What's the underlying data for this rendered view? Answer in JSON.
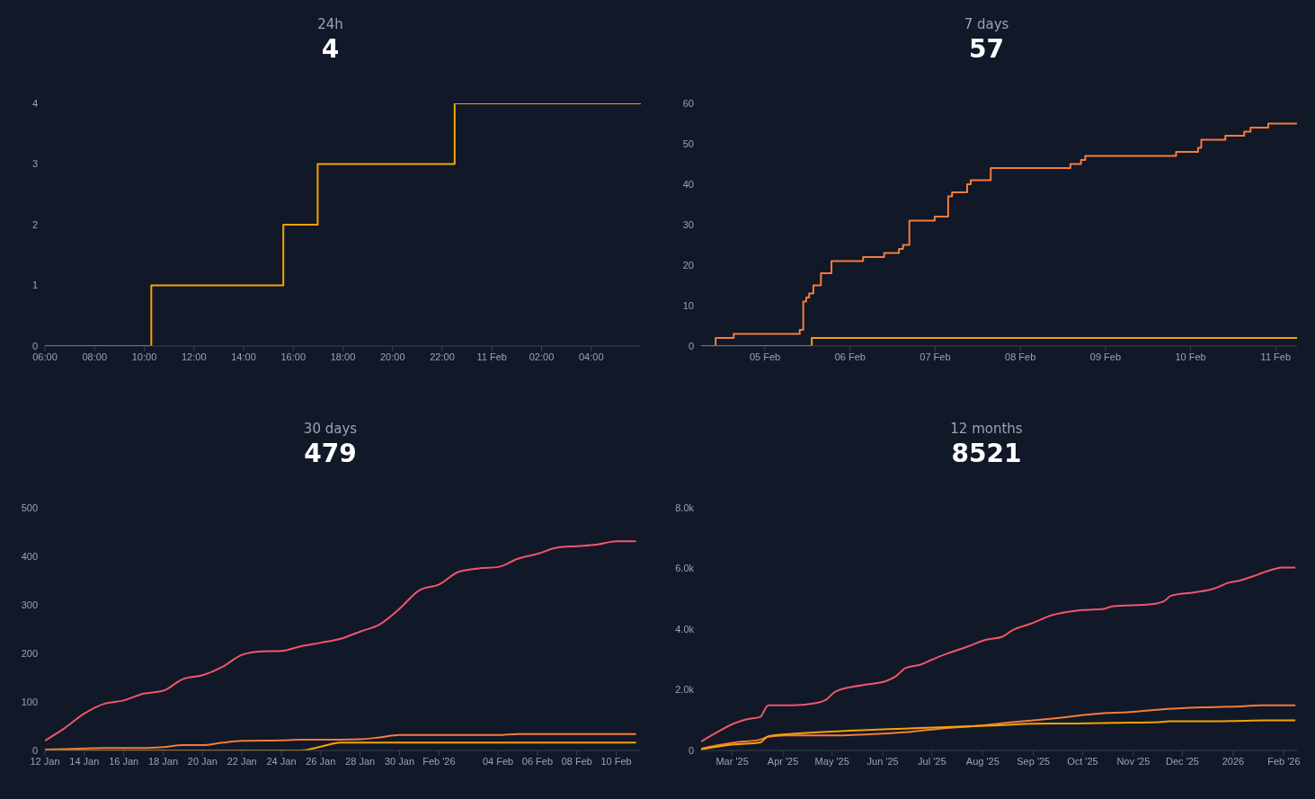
{
  "chart_data": [
    {
      "type": "step",
      "title": "24h",
      "subtitle": "4",
      "xlim": [
        "2026-02-10T06:00",
        "2026-02-11T06:00"
      ],
      "ylim": [
        0,
        4
      ],
      "yticks": [
        0,
        1,
        2,
        3,
        4
      ],
      "xticks": [
        {
          "value": "2026-02-10T06:00",
          "label": "06:00"
        },
        {
          "value": "2026-02-10T08:00",
          "label": "08:00"
        },
        {
          "value": "2026-02-10T10:00",
          "label": "10:00"
        },
        {
          "value": "2026-02-10T12:00",
          "label": "12:00"
        },
        {
          "value": "2026-02-10T14:00",
          "label": "14:00"
        },
        {
          "value": "2026-02-10T16:00",
          "label": "16:00"
        },
        {
          "value": "2026-02-10T18:00",
          "label": "18:00"
        },
        {
          "value": "2026-02-10T20:00",
          "label": "20:00"
        },
        {
          "value": "2026-02-10T22:00",
          "label": "22:00"
        },
        {
          "value": "2026-02-11T00:00",
          "label": "11 Feb"
        },
        {
          "value": "2026-02-11T02:00",
          "label": "02:00"
        },
        {
          "value": "2026-02-11T04:00",
          "label": "04:00"
        }
      ],
      "series": [
        {
          "color": "#f5a300",
          "x": [
            "2026-02-10T06:00",
            "2026-02-10T10:17",
            "2026-02-10T15:36",
            "2026-02-10T16:59",
            "2026-02-10T22:30",
            "2026-02-11T06:00"
          ],
          "values": [
            0,
            1,
            2,
            3,
            4,
            4
          ]
        }
      ]
    },
    {
      "type": "step",
      "title": "7 days",
      "subtitle": "57",
      "xlim": [
        "2026-02-04T06:00",
        "2026-02-11T06:00"
      ],
      "ylim": [
        0,
        60
      ],
      "yticks": [
        0,
        10,
        20,
        30,
        40,
        50,
        60
      ],
      "xticks": [
        {
          "value": "2026-02-05",
          "label": "05 Feb"
        },
        {
          "value": "2026-02-06",
          "label": "06 Feb"
        },
        {
          "value": "2026-02-07",
          "label": "07 Feb"
        },
        {
          "value": "2026-02-08",
          "label": "08 Feb"
        },
        {
          "value": "2026-02-09",
          "label": "09 Feb"
        },
        {
          "value": "2026-02-10",
          "label": "10 Feb"
        },
        {
          "value": "2026-02-11",
          "label": "11 Feb"
        }
      ],
      "series": [
        {
          "color": "#f47c3c",
          "x": [
            "2026-02-04T06:00",
            "2026-02-04T10:06",
            "2026-02-04T15:12",
            "2026-02-05T09:48",
            "2026-02-05T10:48",
            "2026-02-05T11:38",
            "2026-02-05T12:28",
            "2026-02-05T13:39",
            "2026-02-05T15:47",
            "2026-02-05T18:45",
            "2026-02-06T03:40",
            "2026-02-06T09:36",
            "2026-02-06T13:47",
            "2026-02-06T14:56",
            "2026-02-06T16:43",
            "2026-02-06T23:51",
            "2026-02-07T03:39",
            "2026-02-07T04:45",
            "2026-02-07T09:00",
            "2026-02-07T10:00",
            "2026-02-07T15:39",
            "2026-02-08T14:06",
            "2026-02-08T17:06",
            "2026-02-08T18:18",
            "2026-02-09T19:54",
            "2026-02-10T02:06",
            "2026-02-10T03:00",
            "2026-02-10T09:48",
            "2026-02-10T15:06",
            "2026-02-10T16:54",
            "2026-02-10T21:54",
            "2026-02-11T06:00"
          ],
          "values": [
            0,
            2,
            3,
            4,
            11,
            12,
            13,
            15,
            18,
            21,
            22,
            23,
            24,
            25,
            31,
            32,
            37,
            38,
            40,
            41,
            44,
            45,
            46,
            47,
            48,
            49,
            51,
            52,
            53,
            54,
            55,
            55
          ]
        },
        {
          "color": "#f5a300",
          "x": [
            "2026-02-04T06:00",
            "2026-02-05T13:00",
            "2026-02-05T13:12",
            "2026-02-11T06:00"
          ],
          "values": [
            0,
            0,
            2,
            2
          ]
        }
      ]
    },
    {
      "type": "line",
      "title": "30 days",
      "subtitle": "479",
      "xlim": [
        "2026-01-12",
        "2026-02-11T06:00"
      ],
      "ylim": [
        0,
        500
      ],
      "yticks": [
        0,
        100,
        200,
        300,
        400,
        500
      ],
      "xticks": [
        {
          "value": "2026-01-12",
          "label": "12 Jan"
        },
        {
          "value": "2026-01-14",
          "label": "14 Jan"
        },
        {
          "value": "2026-01-16",
          "label": "16 Jan"
        },
        {
          "value": "2026-01-18",
          "label": "18 Jan"
        },
        {
          "value": "2026-01-20",
          "label": "20 Jan"
        },
        {
          "value": "2026-01-22",
          "label": "22 Jan"
        },
        {
          "value": "2026-01-24",
          "label": "24 Jan"
        },
        {
          "value": "2026-01-26",
          "label": "26 Jan"
        },
        {
          "value": "2026-01-28",
          "label": "28 Jan"
        },
        {
          "value": "2026-01-30",
          "label": "30 Jan"
        },
        {
          "value": "2026-02-01",
          "label": "Feb '26"
        },
        {
          "value": "2026-02-04",
          "label": "04 Feb"
        },
        {
          "value": "2026-02-06",
          "label": "06 Feb"
        },
        {
          "value": "2026-02-08",
          "label": "08 Feb"
        },
        {
          "value": "2026-02-10",
          "label": "10 Feb"
        }
      ],
      "series": [
        {
          "color": "#f0566a",
          "x": [
            "2026-01-12",
            "2026-01-13",
            "2026-01-14",
            "2026-01-15",
            "2026-01-16",
            "2026-01-17",
            "2026-01-18",
            "2026-01-19",
            "2026-01-20",
            "2026-01-21",
            "2026-01-22",
            "2026-01-23",
            "2026-01-24",
            "2026-01-25",
            "2026-01-26",
            "2026-01-27",
            "2026-01-28",
            "2026-01-29",
            "2026-01-30",
            "2026-01-31",
            "2026-02-01",
            "2026-02-02",
            "2026-02-03",
            "2026-02-04",
            "2026-02-05",
            "2026-02-06",
            "2026-02-07",
            "2026-02-08",
            "2026-02-09",
            "2026-02-10",
            "2026-02-11"
          ],
          "values": [
            20,
            46,
            76,
            96,
            103,
            117,
            123,
            147,
            155,
            172,
            197,
            204,
            205,
            215,
            222,
            230,
            245,
            260,
            292,
            330,
            342,
            368,
            375,
            378,
            395,
            405,
            418,
            421,
            424,
            431,
            431
          ]
        },
        {
          "color": "#f47c3c",
          "x": [
            "2026-01-12",
            "2026-01-14",
            "2026-01-15",
            "2026-01-17",
            "2026-01-18",
            "2026-01-19",
            "2026-01-20",
            "2026-01-21",
            "2026-01-22",
            "2026-01-24",
            "2026-01-25",
            "2026-01-26",
            "2026-01-28",
            "2026-01-29",
            "2026-01-30",
            "2026-02-04",
            "2026-02-05",
            "2026-02-11"
          ],
          "values": [
            2,
            4,
            5,
            5,
            7,
            11,
            11,
            16,
            20,
            21,
            22,
            22,
            23,
            27,
            32,
            32,
            34,
            34
          ]
        },
        {
          "color": "#f5a300",
          "x": [
            "2026-01-12",
            "2026-01-25",
            "2026-01-26",
            "2026-01-27",
            "2026-02-11"
          ],
          "values": [
            0,
            0,
            8,
            16,
            16
          ]
        }
      ]
    },
    {
      "type": "line",
      "title": "12 months",
      "subtitle": "8521",
      "xlim": [
        "2025-02-10",
        "2026-02-09"
      ],
      "ylim": [
        0,
        8000
      ],
      "yticks": [
        0,
        {
          "value": 2000,
          "label": "2.0k"
        },
        {
          "value": 4000,
          "label": "4.0k"
        },
        {
          "value": 6000,
          "label": "6.0k"
        },
        {
          "value": 8000,
          "label": "8.0k"
        }
      ],
      "xticks": [
        {
          "value": "2025-03-01",
          "label": "Mar '25"
        },
        {
          "value": "2025-04-01",
          "label": "Apr '25"
        },
        {
          "value": "2025-05-01",
          "label": "May '25"
        },
        {
          "value": "2025-06-01",
          "label": "Jun '25"
        },
        {
          "value": "2025-07-01",
          "label": "Jul '25"
        },
        {
          "value": "2025-08-01",
          "label": "Aug '25"
        },
        {
          "value": "2025-09-01",
          "label": "Sep '25"
        },
        {
          "value": "2025-10-01",
          "label": "Oct '25"
        },
        {
          "value": "2025-11-01",
          "label": "Nov '25"
        },
        {
          "value": "2025-12-01",
          "label": "Dec '25"
        },
        {
          "value": "2026-01-01",
          "label": "2026"
        },
        {
          "value": "2026-02-01",
          "label": "Feb '26"
        }
      ],
      "series": [
        {
          "color": "#f0566a",
          "x": [
            "2025-02-10",
            "2025-02-20",
            "2025-03-02",
            "2025-03-10",
            "2025-03-18",
            "2025-03-23",
            "2025-04-07",
            "2025-04-22",
            "2025-04-27",
            "2025-05-03",
            "2025-05-19",
            "2025-06-03",
            "2025-06-09",
            "2025-06-15",
            "2025-06-24",
            "2025-06-30",
            "2025-07-10",
            "2025-07-23",
            "2025-08-03",
            "2025-08-13",
            "2025-08-19",
            "2025-09-01",
            "2025-09-10",
            "2025-09-21",
            "2025-10-01",
            "2025-10-14",
            "2025-10-19",
            "2025-11-12",
            "2025-11-20",
            "2025-11-24",
            "2025-12-08",
            "2025-12-21",
            "2025-12-29",
            "2026-01-05",
            "2026-01-13",
            "2026-01-19",
            "2026-01-26",
            "2026-01-31",
            "2026-02-08"
          ],
          "values": [
            290,
            610,
            890,
            1030,
            1100,
            1490,
            1490,
            1570,
            1660,
            1940,
            2150,
            2290,
            2450,
            2720,
            2830,
            2970,
            3190,
            3430,
            3650,
            3750,
            3960,
            4210,
            4420,
            4560,
            4630,
            4670,
            4750,
            4820,
            4930,
            5100,
            5210,
            5350,
            5530,
            5600,
            5740,
            5860,
            5980,
            6030,
            6030
          ]
        },
        {
          "color": "#f47c3c",
          "x": [
            "2025-02-10",
            "2025-02-20",
            "2025-03-02",
            "2025-03-18",
            "2025-03-23",
            "2025-04-02",
            "2025-04-22",
            "2025-05-08",
            "2025-05-24",
            "2025-06-14",
            "2025-07-05",
            "2025-08-03",
            "2025-08-19",
            "2025-09-14",
            "2025-09-27",
            "2025-10-09",
            "2025-10-30",
            "2025-11-17",
            "2025-12-13",
            "2026-01-08",
            "2026-01-18",
            "2026-02-08"
          ],
          "values": [
            60,
            170,
            260,
            360,
            450,
            500,
            500,
            500,
            530,
            600,
            710,
            840,
            930,
            1060,
            1140,
            1210,
            1270,
            1350,
            1420,
            1460,
            1490,
            1490
          ]
        },
        {
          "color": "#f5a300",
          "x": [
            "2025-02-10",
            "2025-03-02",
            "2025-03-18",
            "2025-03-23",
            "2025-04-02",
            "2025-04-22",
            "2025-05-19",
            "2025-06-14",
            "2025-07-10",
            "2025-08-07",
            "2025-09-01",
            "2025-09-27",
            "2025-10-22",
            "2025-11-17",
            "2025-11-23",
            "2025-12-13",
            "2026-01-08",
            "2026-01-21",
            "2026-02-08"
          ],
          "values": [
            40,
            200,
            260,
            470,
            530,
            600,
            670,
            720,
            770,
            820,
            880,
            890,
            910,
            930,
            960,
            960,
            980,
            990,
            990
          ]
        }
      ]
    }
  ]
}
